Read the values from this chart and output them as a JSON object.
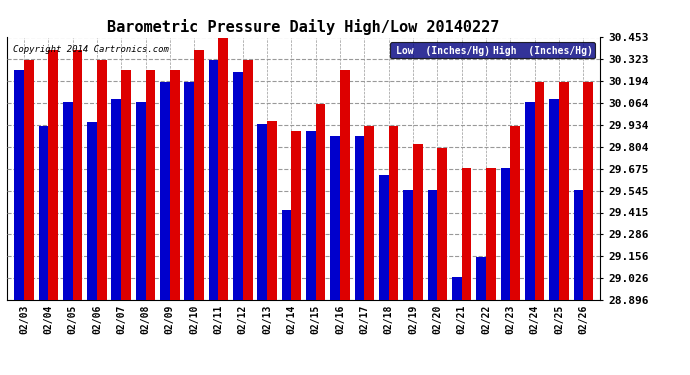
{
  "title": "Barometric Pressure Daily High/Low 20140227",
  "copyright": "Copyright 2014 Cartronics.com",
  "dates": [
    "02/03",
    "02/04",
    "02/05",
    "02/06",
    "02/07",
    "02/08",
    "02/09",
    "02/10",
    "02/11",
    "02/12",
    "02/13",
    "02/14",
    "02/15",
    "02/16",
    "02/17",
    "02/18",
    "02/19",
    "02/20",
    "02/21",
    "02/22",
    "02/23",
    "02/24",
    "02/25",
    "02/26"
  ],
  "low_values": [
    30.26,
    29.93,
    30.07,
    29.95,
    30.09,
    30.07,
    30.19,
    30.19,
    30.32,
    30.25,
    29.94,
    29.43,
    29.9,
    29.87,
    29.87,
    29.64,
    29.55,
    29.55,
    29.03,
    29.15,
    29.68,
    30.07,
    30.09,
    29.55
  ],
  "high_values": [
    30.32,
    30.38,
    30.38,
    30.32,
    30.26,
    30.26,
    30.26,
    30.38,
    30.45,
    30.32,
    29.96,
    29.9,
    30.06,
    30.26,
    29.93,
    29.93,
    29.82,
    29.8,
    29.68,
    29.68,
    29.93,
    30.19,
    30.19,
    30.19
  ],
  "ylim_min": 28.896,
  "ylim_max": 30.453,
  "yticks": [
    28.896,
    29.026,
    29.156,
    29.286,
    29.415,
    29.545,
    29.675,
    29.804,
    29.934,
    30.064,
    30.194,
    30.323,
    30.453
  ],
  "low_color": "#0000cc",
  "high_color": "#dd0000",
  "bg_color": "#ffffff",
  "plot_bg_color": "#ffffff",
  "grid_color": "#999999",
  "bar_width": 0.4,
  "legend_low_label": "Low  (Inches/Hg)",
  "legend_high_label": "High  (Inches/Hg)"
}
